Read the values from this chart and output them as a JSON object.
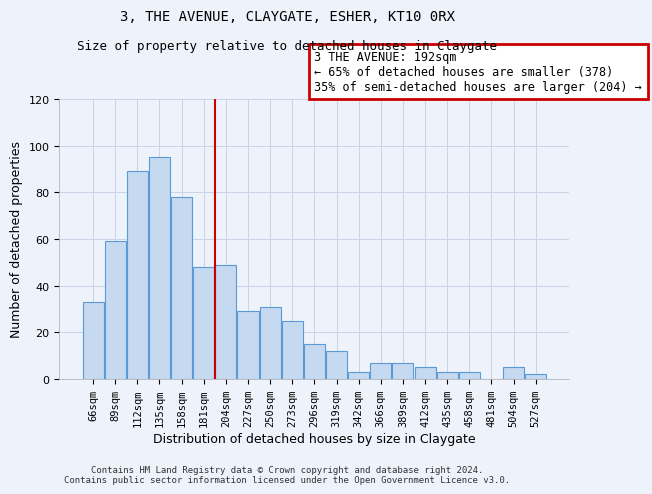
{
  "title": "3, THE AVENUE, CLAYGATE, ESHER, KT10 0RX",
  "subtitle": "Size of property relative to detached houses in Claygate",
  "xlabel": "Distribution of detached houses by size in Claygate",
  "ylabel": "Number of detached properties",
  "categories": [
    "66sqm",
    "89sqm",
    "112sqm",
    "135sqm",
    "158sqm",
    "181sqm",
    "204sqm",
    "227sqm",
    "250sqm",
    "273sqm",
    "296sqm",
    "319sqm",
    "342sqm",
    "366sqm",
    "389sqm",
    "412sqm",
    "435sqm",
    "458sqm",
    "481sqm",
    "504sqm",
    "527sqm"
  ],
  "values": [
    33,
    59,
    89,
    95,
    78,
    48,
    49,
    29,
    31,
    25,
    15,
    12,
    3,
    7,
    7,
    5,
    3,
    3,
    0,
    5,
    2
  ],
  "bar_color": "#c5d9f1",
  "bar_edge_color": "#5b9bd5",
  "ylim": [
    0,
    120
  ],
  "yticks": [
    0,
    20,
    40,
    60,
    80,
    100,
    120
  ],
  "vline_x": 5.5,
  "vline_color": "#cc0000",
  "annotation_title": "3 THE AVENUE: 192sqm",
  "annotation_line1": "← 65% of detached houses are smaller (378)",
  "annotation_line2": "35% of semi-detached houses are larger (204) →",
  "annotation_box_color": "#cc0000",
  "footer1": "Contains HM Land Registry data © Crown copyright and database right 2024.",
  "footer2": "Contains public sector information licensed under the Open Government Licence v3.0.",
  "background_color": "#eef2fa"
}
